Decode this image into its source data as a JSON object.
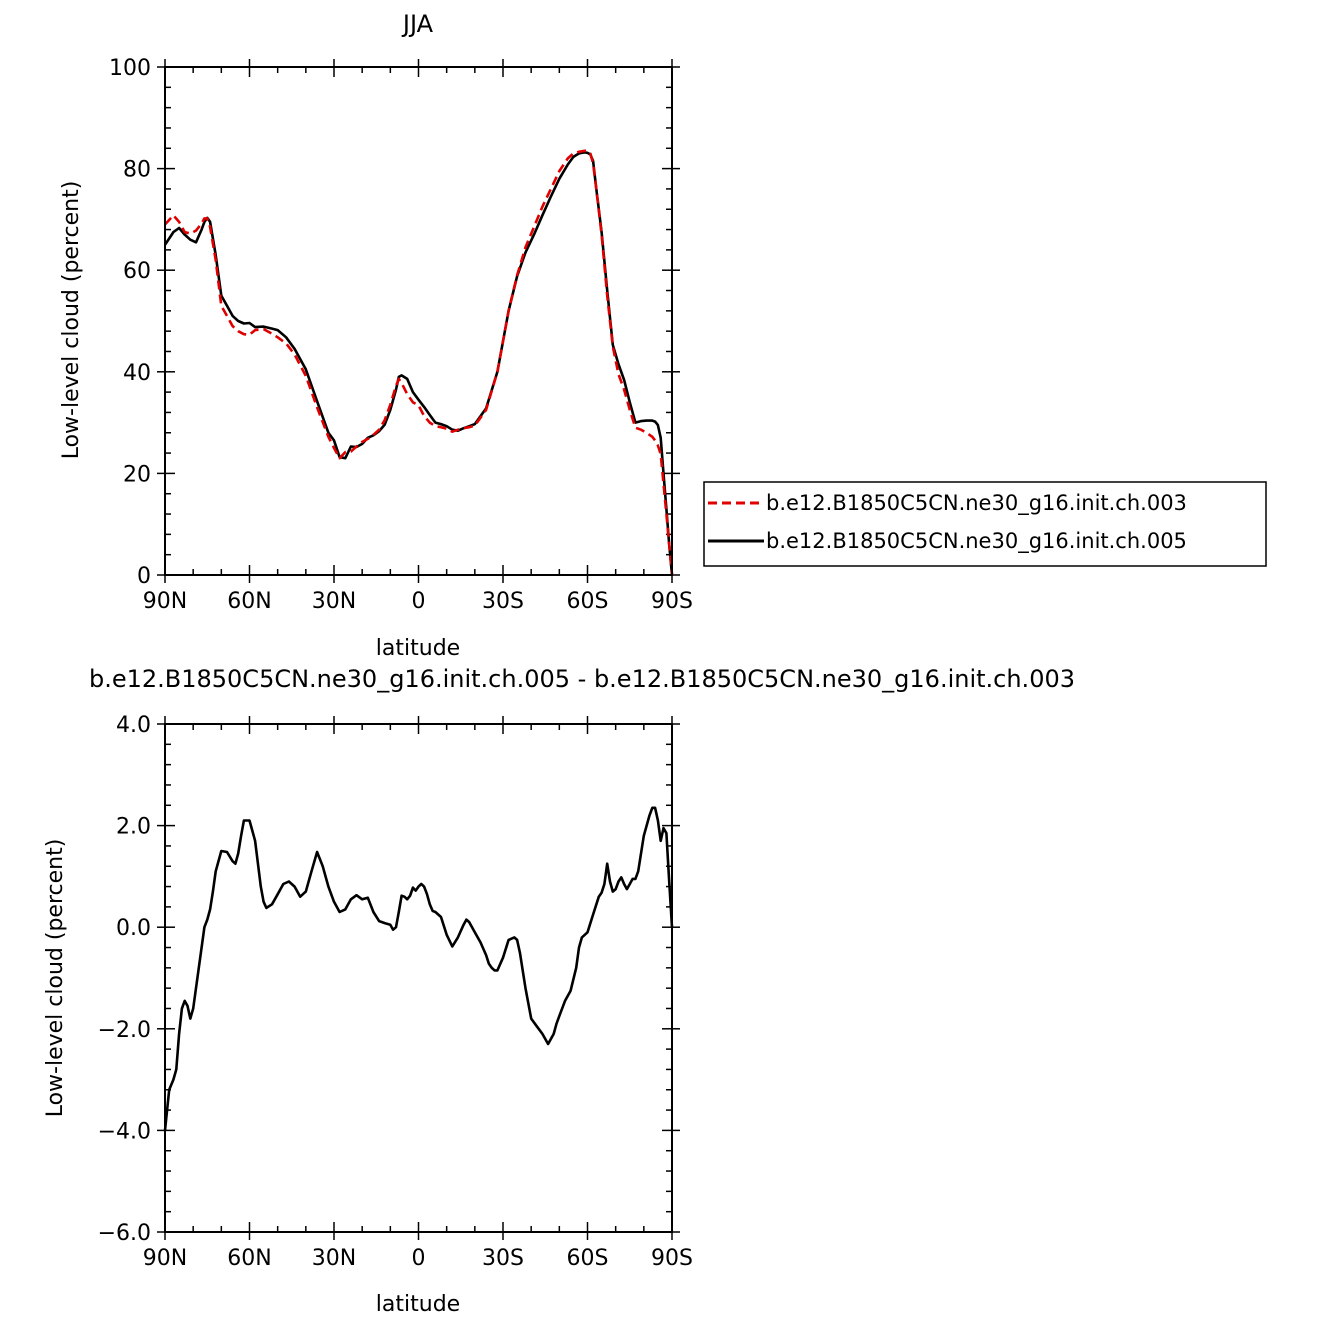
{
  "charts": [
    {
      "type": "line",
      "title": "JJA",
      "xlabel": "latitude",
      "ylabel": "Low-level cloud (percent)",
      "xlim": [
        90,
        -90
      ],
      "ylim": [
        0,
        100
      ],
      "xticks": [
        {
          "value": 90,
          "label": "90N"
        },
        {
          "value": 60,
          "label": "60N"
        },
        {
          "value": 30,
          "label": "30N"
        },
        {
          "value": 0,
          "label": "0"
        },
        {
          "value": -30,
          "label": "30S"
        },
        {
          "value": -60,
          "label": "60S"
        },
        {
          "value": -90,
          "label": "90S"
        }
      ],
      "yticks": [
        {
          "value": 0,
          "label": "0"
        },
        {
          "value": 20,
          "label": "20"
        },
        {
          "value": 40,
          "label": "40"
        },
        {
          "value": 60,
          "label": "60"
        },
        {
          "value": 80,
          "label": "80"
        },
        {
          "value": 100,
          "label": "100"
        }
      ],
      "legend": {
        "placement": "right"
      },
      "series": [
        {
          "name": "b.e12.B1850C5CN.ne30_g16.init.ch.003",
          "color": "#e00000",
          "dash": true,
          "x": [
            90,
            87,
            85,
            83,
            81,
            79,
            77,
            76,
            75,
            74,
            72,
            70,
            68,
            66,
            64,
            62,
            60,
            58,
            55,
            52,
            50,
            47,
            44,
            40,
            36,
            32,
            30,
            28,
            26,
            24,
            22,
            20,
            18,
            16,
            14,
            12,
            10,
            8,
            7,
            6,
            4,
            2,
            0,
            -2,
            -4,
            -6,
            -8,
            -10,
            -12,
            -14,
            -16,
            -18,
            -20,
            -24,
            -28,
            -30,
            -32,
            -35,
            -38,
            -41,
            -44,
            -47,
            -50,
            -53,
            -55,
            -57,
            -59,
            -60,
            -61,
            -62,
            -63,
            -65,
            -67,
            -69,
            -71,
            -73,
            -75,
            -77,
            -79,
            -81,
            -83,
            -84,
            -85,
            -86,
            -87,
            -88,
            -89,
            -90
          ],
          "y": [
            69,
            70.8,
            69.5,
            67.5,
            67.2,
            67.8,
            69.2,
            70.2,
            70.2,
            68.5,
            62,
            53,
            51,
            49,
            48,
            47.4,
            47.3,
            48.2,
            48.4,
            47.5,
            46.8,
            45.6,
            43.4,
            39.2,
            33,
            27.2,
            25,
            23,
            24.2,
            24.3,
            25.3,
            26.2,
            26.8,
            27.6,
            28.6,
            30.5,
            33.5,
            37.2,
            38.6,
            37.8,
            35.6,
            34,
            33.4,
            31.3,
            30,
            29.3,
            29.1,
            28.8,
            28.2,
            28.6,
            28.9,
            29.1,
            29.4,
            32.5,
            40,
            46,
            52,
            59,
            64.5,
            68.5,
            72.5,
            76,
            79.5,
            82,
            83,
            83.3,
            83.5,
            83.5,
            83,
            81,
            76.5,
            67,
            55,
            45,
            39.5,
            36.5,
            32.5,
            29,
            28.6,
            28,
            27.2,
            26.5,
            25.5,
            23.8,
            18,
            12,
            6,
            0
          ]
        },
        {
          "name": "b.e12.B1850C5CN.ne30_g16.init.ch.005",
          "color": "#000000",
          "dash": false,
          "x": [
            90,
            87,
            85,
            83,
            81,
            79,
            77,
            76,
            75,
            74,
            72,
            70,
            68,
            66,
            64,
            62,
            60,
            58,
            55,
            52,
            50,
            47,
            44,
            40,
            36,
            32,
            30,
            28,
            26,
            24,
            22,
            20,
            18,
            16,
            14,
            12,
            10,
            8,
            7,
            6,
            4,
            2,
            0,
            -2,
            -4,
            -6,
            -8,
            -10,
            -12,
            -14,
            -16,
            -18,
            -20,
            -24,
            -28,
            -30,
            -32,
            -35,
            -38,
            -41,
            -44,
            -47,
            -50,
            -53,
            -55,
            -57,
            -59,
            -60,
            -61,
            -62,
            -63,
            -65,
            -67,
            -69,
            -71,
            -73,
            -75,
            -77,
            -79,
            -81,
            -83,
            -84,
            -85,
            -86,
            -87,
            -88,
            -89,
            -90
          ],
          "y": [
            65,
            67.5,
            68.3,
            67,
            66,
            65.5,
            68,
            69.5,
            70.3,
            69.5,
            63,
            55,
            53,
            51,
            50,
            49.5,
            49.6,
            48.8,
            48.9,
            48.5,
            48.2,
            46.8,
            44.5,
            40.5,
            34.2,
            28,
            26.5,
            23.2,
            23,
            25.3,
            25.2,
            25.8,
            27,
            27.5,
            28.3,
            29.6,
            32.5,
            36.5,
            39,
            39.3,
            38.6,
            36,
            34.5,
            33.1,
            31.5,
            30,
            29.7,
            29.3,
            28.6,
            28.4,
            28.9,
            29.3,
            29.7,
            32.8,
            40,
            46,
            52,
            58.8,
            63.5,
            67,
            70.8,
            74.5,
            78,
            80.8,
            82.3,
            83,
            83.2,
            83.1,
            82.8,
            81.5,
            76.5,
            67.5,
            56,
            45.3,
            41.5,
            38.4,
            34,
            30,
            30.3,
            30.4,
            30.4,
            30.2,
            29.5,
            27,
            20,
            13,
            6,
            0
          ]
        }
      ]
    },
    {
      "type": "line",
      "title": "b.e12.B1850C5CN.ne30_g16.init.ch.005 - b.e12.B1850C5CN.ne30_g16.init.ch.003",
      "xlabel": "latitude",
      "ylabel": "Low-level cloud (percent)",
      "xlim": [
        90,
        -90
      ],
      "ylim": [
        -6,
        4
      ],
      "xticks": [
        {
          "value": 90,
          "label": "90N"
        },
        {
          "value": 60,
          "label": "60N"
        },
        {
          "value": 30,
          "label": "30N"
        },
        {
          "value": 0,
          "label": "0"
        },
        {
          "value": -30,
          "label": "30S"
        },
        {
          "value": -60,
          "label": "60S"
        },
        {
          "value": -90,
          "label": "90S"
        }
      ],
      "yticks": [
        {
          "value": -6,
          "label": "−6.0"
        },
        {
          "value": -4,
          "label": "−4.0"
        },
        {
          "value": -2,
          "label": "−2.0"
        },
        {
          "value": 0,
          "label": "0.0"
        },
        {
          "value": 2,
          "label": "2.0"
        },
        {
          "value": 4,
          "label": "4.0"
        }
      ],
      "series": [
        {
          "color": "#000000",
          "dash": false,
          "x": [
            90,
            88.5,
            87,
            86,
            85,
            84,
            83,
            82,
            81,
            80,
            78,
            76,
            75,
            74,
            73,
            72,
            70,
            68,
            66,
            65,
            64,
            63,
            62,
            60,
            58,
            56,
            55,
            54,
            52,
            50,
            48,
            46,
            44,
            42,
            40,
            38,
            36,
            34,
            32,
            30,
            28,
            26,
            24,
            22,
            20,
            18,
            16,
            14,
            12,
            10,
            9,
            8,
            7,
            6,
            5,
            4,
            3,
            2,
            1,
            0,
            -1,
            -2,
            -3,
            -4,
            -5,
            -6,
            -8,
            -10,
            -12,
            -14,
            -16,
            -17,
            -18,
            -20,
            -22,
            -24,
            -25,
            -26,
            -27,
            -28,
            -30,
            -32,
            -34,
            -35,
            -36,
            -38,
            -40,
            -42,
            -44,
            -46,
            -48,
            -49,
            -50,
            -52,
            -54,
            -56,
            -57,
            -58,
            -60,
            -62,
            -64,
            -65,
            -66,
            -67,
            -68,
            -69,
            -70,
            -71,
            -72,
            -73,
            -74,
            -75,
            -76,
            -77,
            -78,
            -80,
            -82,
            -83,
            -84,
            -85,
            -86,
            -87,
            -88,
            -89,
            -90
          ],
          "y": [
            -4.0,
            -3.2,
            -3.0,
            -2.8,
            -2.1,
            -1.6,
            -1.45,
            -1.55,
            -1.8,
            -1.6,
            -0.8,
            0.0,
            0.15,
            0.35,
            0.7,
            1.1,
            1.5,
            1.48,
            1.3,
            1.25,
            1.45,
            1.8,
            2.1,
            2.1,
            1.7,
            0.8,
            0.5,
            0.38,
            0.45,
            0.65,
            0.85,
            0.9,
            0.8,
            0.6,
            0.7,
            1.1,
            1.48,
            1.2,
            0.8,
            0.5,
            0.3,
            0.35,
            0.55,
            0.63,
            0.55,
            0.58,
            0.3,
            0.12,
            0.08,
            0.05,
            -0.05,
            0.0,
            0.3,
            0.62,
            0.6,
            0.55,
            0.62,
            0.78,
            0.72,
            0.8,
            0.85,
            0.8,
            0.65,
            0.45,
            0.32,
            0.3,
            0.2,
            -0.15,
            -0.38,
            -0.2,
            0.05,
            0.15,
            0.1,
            -0.1,
            -0.3,
            -0.55,
            -0.72,
            -0.8,
            -0.85,
            -0.85,
            -0.6,
            -0.25,
            -0.2,
            -0.25,
            -0.5,
            -1.2,
            -1.8,
            -1.95,
            -2.1,
            -2.3,
            -2.1,
            -1.9,
            -1.75,
            -1.45,
            -1.25,
            -0.8,
            -0.4,
            -0.2,
            -0.1,
            0.25,
            0.6,
            0.68,
            0.85,
            1.25,
            0.9,
            0.7,
            0.75,
            0.9,
            0.98,
            0.85,
            0.75,
            0.85,
            0.95,
            0.95,
            1.1,
            1.8,
            2.2,
            2.35,
            2.35,
            2.1,
            1.7,
            1.95,
            1.85,
            0.9,
            0.0
          ]
        }
      ]
    }
  ]
}
